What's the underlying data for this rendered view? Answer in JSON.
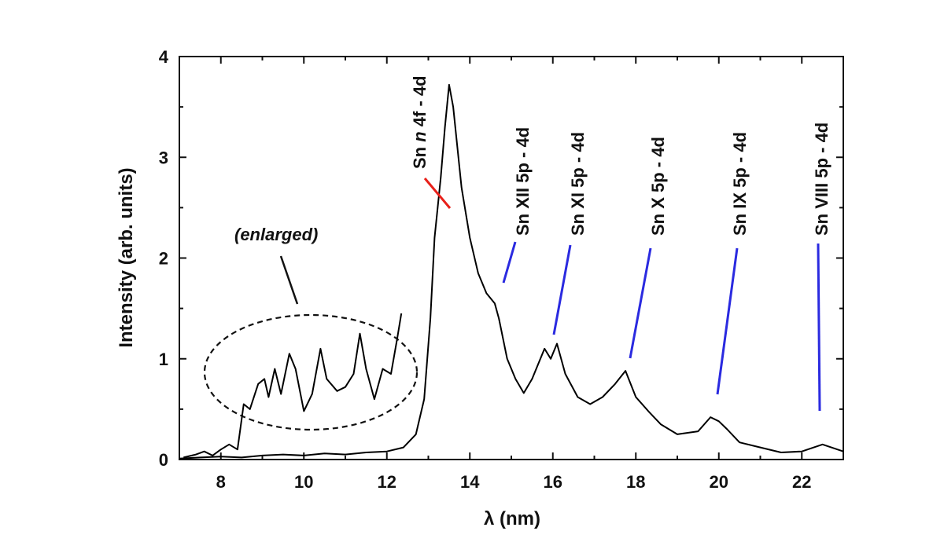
{
  "chart_data": {
    "type": "line",
    "title": "",
    "xlabel": "λ (nm)",
    "ylabel": "Intensity (arb. units)",
    "xlim": [
      7,
      23
    ],
    "ylim": [
      0,
      4
    ],
    "x_ticks": [
      "8",
      "10",
      "12",
      "14",
      "16",
      "18",
      "20",
      "22"
    ],
    "y_ticks": [
      "0",
      "1",
      "2",
      "3",
      "4"
    ],
    "grid": false,
    "series": [
      {
        "name": "",
        "points": [
          [
            7.0,
            0.01
          ],
          [
            7.5,
            0.02
          ],
          [
            8.0,
            0.03
          ],
          [
            8.5,
            0.02
          ],
          [
            9.0,
            0.04
          ],
          [
            9.5,
            0.05
          ],
          [
            10.0,
            0.04
          ],
          [
            10.5,
            0.06
          ],
          [
            11.0,
            0.05
          ],
          [
            11.5,
            0.07
          ],
          [
            12.0,
            0.08
          ],
          [
            12.4,
            0.12
          ],
          [
            12.7,
            0.25
          ],
          [
            12.9,
            0.6
          ],
          [
            13.05,
            1.4
          ],
          [
            13.15,
            2.2
          ],
          [
            13.3,
            2.8
          ],
          [
            13.4,
            3.3
          ],
          [
            13.5,
            3.72
          ],
          [
            13.6,
            3.5
          ],
          [
            13.8,
            2.7
          ],
          [
            14.0,
            2.2
          ],
          [
            14.2,
            1.85
          ],
          [
            14.4,
            1.65
          ],
          [
            14.6,
            1.55
          ],
          [
            14.7,
            1.4
          ],
          [
            14.9,
            1.0
          ],
          [
            15.1,
            0.8
          ],
          [
            15.3,
            0.66
          ],
          [
            15.5,
            0.8
          ],
          [
            15.8,
            1.1
          ],
          [
            15.95,
            1.0
          ],
          [
            16.1,
            1.15
          ],
          [
            16.3,
            0.85
          ],
          [
            16.6,
            0.62
          ],
          [
            16.9,
            0.55
          ],
          [
            17.2,
            0.62
          ],
          [
            17.5,
            0.75
          ],
          [
            17.75,
            0.88
          ],
          [
            18.0,
            0.62
          ],
          [
            18.3,
            0.48
          ],
          [
            18.6,
            0.35
          ],
          [
            19.0,
            0.25
          ],
          [
            19.5,
            0.28
          ],
          [
            19.8,
            0.42
          ],
          [
            20.0,
            0.38
          ],
          [
            20.2,
            0.3
          ],
          [
            20.5,
            0.17
          ],
          [
            21.0,
            0.12
          ],
          [
            21.5,
            0.07
          ],
          [
            22.0,
            0.08
          ],
          [
            22.5,
            0.15
          ],
          [
            23.0,
            0.08
          ]
        ]
      },
      {
        "name": "(enlarged)",
        "points": [
          [
            7.1,
            0.02
          ],
          [
            7.4,
            0.05
          ],
          [
            7.6,
            0.08
          ],
          [
            7.8,
            0.04
          ],
          [
            8.0,
            0.1
          ],
          [
            8.2,
            0.15
          ],
          [
            8.4,
            0.1
          ],
          [
            8.55,
            0.55
          ],
          [
            8.7,
            0.5
          ],
          [
            8.9,
            0.75
          ],
          [
            9.05,
            0.8
          ],
          [
            9.15,
            0.62
          ],
          [
            9.3,
            0.9
          ],
          [
            9.45,
            0.65
          ],
          [
            9.65,
            1.05
          ],
          [
            9.8,
            0.9
          ],
          [
            10.0,
            0.48
          ],
          [
            10.2,
            0.65
          ],
          [
            10.4,
            1.1
          ],
          [
            10.55,
            0.8
          ],
          [
            10.8,
            0.68
          ],
          [
            11.0,
            0.72
          ],
          [
            11.2,
            0.85
          ],
          [
            11.35,
            1.25
          ],
          [
            11.5,
            0.9
          ],
          [
            11.7,
            0.6
          ],
          [
            11.9,
            0.9
          ],
          [
            12.1,
            0.85
          ],
          [
            12.25,
            1.2
          ],
          [
            12.35,
            1.45
          ]
        ]
      }
    ],
    "annotations": {
      "sn_n_prefix": "Sn ",
      "sn_n_italic": "n",
      "sn_n_suffix": "  4f - 4d",
      "sn_xii": "Sn XII 5p - 4d",
      "sn_xi": "Sn XI 5p - 4d",
      "sn_x": "Sn X 5p - 4d",
      "sn_ix": "Sn IX 5p - 4d",
      "sn_viii": "Sn VIII 5p - 4d",
      "enlarged": "(enlarged)"
    },
    "colors": {
      "line": "#000000",
      "red_marker": "#e8201a",
      "blue_marker": "#2a2ae0"
    }
  }
}
